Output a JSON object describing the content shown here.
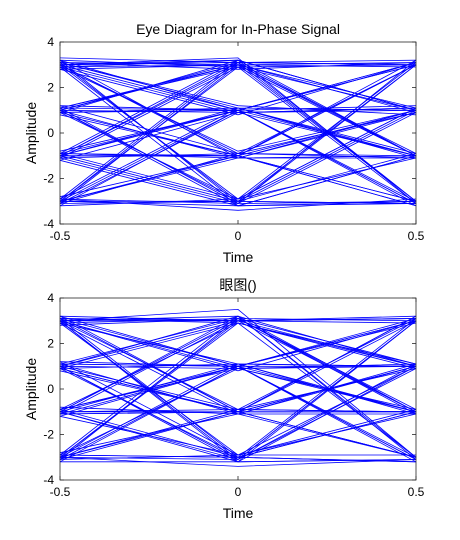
{
  "chart_data": [
    {
      "type": "line",
      "title": "Eye Diagram for In-Phase Signal",
      "xlabel": "Time",
      "ylabel": "Amplitude",
      "xlim": [
        -0.5,
        0.5
      ],
      "ylim": [
        -4,
        4
      ],
      "xticks": [
        "-0.5",
        "0",
        "0.5"
      ],
      "yticks": [
        "4",
        "2",
        "0",
        "-2",
        "-4"
      ],
      "color": "#0000ff",
      "trace_x": [
        -0.5,
        0,
        0.5
      ],
      "traces": [
        [
          3.0,
          3.1,
          3.2
        ],
        [
          3.1,
          3.0,
          -0.9
        ],
        [
          2.9,
          3.2,
          1.0
        ],
        [
          3.2,
          2.9,
          3.0
        ],
        [
          3.0,
          3.3,
          -3.1
        ],
        [
          2.8,
          3.0,
          1.1
        ],
        [
          3.3,
          3.1,
          -1.0
        ],
        [
          3.1,
          2.8,
          3.1
        ],
        [
          2.9,
          3.0,
          0.9
        ],
        [
          3.0,
          3.2,
          -3.0
        ],
        [
          3.2,
          1.0,
          3.0
        ],
        [
          2.9,
          0.9,
          -1.0
        ],
        [
          3.1,
          1.1,
          1.0
        ],
        [
          3.0,
          1.0,
          -3.2
        ],
        [
          2.8,
          0.8,
          3.1
        ],
        [
          3.1,
          1.2,
          0.8
        ],
        [
          3.0,
          -1.0,
          -3.0
        ],
        [
          2.9,
          -0.8,
          1.0
        ],
        [
          3.2,
          -1.1,
          -1.1
        ],
        [
          3.0,
          -0.9,
          3.0
        ],
        [
          3.1,
          -3.0,
          -3.1
        ],
        [
          2.9,
          -3.2,
          -1.0
        ],
        [
          3.0,
          -2.9,
          1.1
        ],
        [
          3.2,
          -3.1,
          3.2
        ],
        [
          1.0,
          3.1,
          3.0
        ],
        [
          1.1,
          2.9,
          -1.0
        ],
        [
          0.9,
          3.2,
          1.0
        ],
        [
          1.0,
          3.0,
          -3.0
        ],
        [
          1.2,
          1.0,
          3.1
        ],
        [
          0.9,
          1.1,
          -0.9
        ],
        [
          1.0,
          0.9,
          1.1
        ],
        [
          1.1,
          1.0,
          -3.1
        ],
        [
          0.8,
          -1.0,
          3.0
        ],
        [
          1.0,
          -1.1,
          1.0
        ],
        [
          1.2,
          -0.9,
          -1.0
        ],
        [
          0.9,
          -1.0,
          -3.2
        ],
        [
          1.0,
          -3.0,
          3.0
        ],
        [
          1.1,
          -3.1,
          0.9
        ],
        [
          0.9,
          -2.9,
          -1.1
        ],
        [
          1.0,
          -3.2,
          -3.0
        ],
        [
          1.1,
          3.0,
          2.9
        ],
        [
          0.9,
          1.0,
          1.2
        ],
        [
          -1.0,
          3.0,
          3.1
        ],
        [
          -0.9,
          3.2,
          -1.0
        ],
        [
          -1.1,
          2.9,
          1.0
        ],
        [
          -1.0,
          3.1,
          -3.0
        ],
        [
          -0.8,
          1.0,
          3.0
        ],
        [
          -1.0,
          1.1,
          -1.1
        ],
        [
          -1.2,
          0.9,
          1.0
        ],
        [
          -0.9,
          1.0,
          -3.1
        ],
        [
          -1.0,
          -1.0,
          3.2
        ],
        [
          -1.1,
          -0.9,
          0.9
        ],
        [
          -0.9,
          -1.1,
          -1.0
        ],
        [
          -1.0,
          -1.0,
          -3.0
        ],
        [
          -1.1,
          -3.1,
          3.0
        ],
        [
          -0.9,
          -2.9,
          1.1
        ],
        [
          -1.0,
          -3.0,
          -0.9
        ],
        [
          -1.2,
          -3.2,
          -3.1
        ],
        [
          -1.0,
          1.0,
          -1.0
        ],
        [
          -0.9,
          -1.0,
          1.0
        ],
        [
          -3.0,
          3.1,
          3.0
        ],
        [
          -3.1,
          3.0,
          -1.0
        ],
        [
          -2.9,
          3.2,
          1.0
        ],
        [
          -3.0,
          2.9,
          -3.1
        ],
        [
          -3.2,
          1.0,
          3.1
        ],
        [
          -2.9,
          1.1,
          -1.0
        ],
        [
          -3.1,
          0.9,
          1.1
        ],
        [
          -3.0,
          1.0,
          -3.0
        ],
        [
          -2.8,
          -1.0,
          3.0
        ],
        [
          -3.0,
          -1.1,
          0.9
        ],
        [
          -3.1,
          -0.9,
          -1.1
        ],
        [
          -3.0,
          -1.0,
          -3.2
        ],
        [
          -2.9,
          -3.1,
          -3.0
        ],
        [
          -3.2,
          -2.9,
          3.1
        ],
        [
          -3.0,
          -3.2,
          -1.0
        ],
        [
          -3.1,
          -3.0,
          1.0
        ],
        [
          -2.9,
          -3.4,
          -2.9
        ],
        [
          -3.0,
          -3.0,
          -3.1
        ]
      ]
    },
    {
      "type": "line",
      "title": "眼图()",
      "xlabel": "Time",
      "ylabel": "Amplitude",
      "xlim": [
        -0.5,
        0.5
      ],
      "ylim": [
        -4,
        4
      ],
      "xticks": [
        "-0.5",
        "0",
        "0.5"
      ],
      "yticks": [
        "4",
        "2",
        "0",
        "-2",
        "-4"
      ],
      "color": "#0000ff",
      "trace_x": [
        -0.5,
        0,
        0.5
      ],
      "traces": [
        [
          3.1,
          3.0,
          3.1
        ],
        [
          3.0,
          3.2,
          -1.0
        ],
        [
          2.9,
          3.1,
          1.1
        ],
        [
          3.2,
          3.0,
          2.9
        ],
        [
          3.0,
          3.5,
          -3.0
        ],
        [
          3.1,
          2.9,
          0.9
        ],
        [
          2.8,
          3.1,
          -1.1
        ],
        [
          3.0,
          3.0,
          3.2
        ],
        [
          3.1,
          1.0,
          2.9
        ],
        [
          3.0,
          0.9,
          -1.0
        ],
        [
          2.9,
          1.1,
          1.0
        ],
        [
          3.2,
          1.0,
          -3.1
        ],
        [
          3.0,
          0.8,
          3.0
        ],
        [
          3.1,
          -1.0,
          1.0
        ],
        [
          2.9,
          -1.1,
          -3.0
        ],
        [
          3.0,
          -0.9,
          3.1
        ],
        [
          3.2,
          -1.0,
          -1.0
        ],
        [
          3.1,
          -3.0,
          -3.2
        ],
        [
          3.0,
          -3.1,
          1.1
        ],
        [
          2.9,
          -2.9,
          -0.9
        ],
        [
          3.0,
          -3.2,
          3.0
        ],
        [
          3.1,
          3.0,
          1.0
        ],
        [
          1.0,
          3.0,
          3.1
        ],
        [
          1.1,
          3.1,
          -0.9
        ],
        [
          0.9,
          2.9,
          1.0
        ],
        [
          1.0,
          3.2,
          -3.1
        ],
        [
          1.2,
          1.0,
          3.0
        ],
        [
          0.9,
          1.1,
          -1.0
        ],
        [
          1.0,
          0.9,
          1.1
        ],
        [
          1.1,
          1.0,
          -3.0
        ],
        [
          0.8,
          -1.0,
          3.2
        ],
        [
          1.0,
          -0.9,
          0.9
        ],
        [
          1.1,
          -1.1,
          -1.1
        ],
        [
          0.9,
          -1.0,
          -3.0
        ],
        [
          1.0,
          -3.1,
          3.0
        ],
        [
          1.2,
          -2.9,
          1.0
        ],
        [
          0.9,
          -3.0,
          -1.0
        ],
        [
          1.0,
          -3.2,
          -3.1
        ],
        [
          1.1,
          1.0,
          1.0
        ],
        [
          0.9,
          -1.0,
          -1.0
        ],
        [
          -1.0,
          3.1,
          3.0
        ],
        [
          -1.1,
          3.0,
          -1.0
        ],
        [
          -0.9,
          2.9,
          1.1
        ],
        [
          -1.0,
          3.2,
          -3.0
        ],
        [
          -1.2,
          1.0,
          3.1
        ],
        [
          -0.9,
          0.9,
          -0.9
        ],
        [
          -1.0,
          1.1,
          1.0
        ],
        [
          -1.1,
          1.0,
          -3.2
        ],
        [
          -1.0,
          -1.0,
          3.0
        ],
        [
          -0.8,
          -1.1,
          1.0
        ],
        [
          -1.0,
          -0.9,
          -1.0
        ],
        [
          -1.1,
          -1.0,
          -3.0
        ],
        [
          -0.9,
          -3.0,
          3.1
        ],
        [
          -1.0,
          -3.1,
          0.9
        ],
        [
          -1.2,
          -2.9,
          -1.1
        ],
        [
          -1.0,
          -3.2,
          -3.1
        ],
        [
          -0.9,
          1.0,
          -1.0
        ],
        [
          -1.1,
          -1.0,
          1.0
        ],
        [
          -3.0,
          3.0,
          3.1
        ],
        [
          -3.1,
          3.1,
          -1.0
        ],
        [
          -2.9,
          3.2,
          1.0
        ],
        [
          -3.0,
          2.9,
          -3.0
        ],
        [
          -3.2,
          1.0,
          3.0
        ],
        [
          -3.0,
          1.1,
          -1.1
        ],
        [
          -2.9,
          0.9,
          1.0
        ],
        [
          -3.1,
          1.0,
          -3.1
        ],
        [
          -3.0,
          -1.0,
          3.2
        ],
        [
          -2.8,
          -1.1,
          1.1
        ],
        [
          -3.0,
          -0.9,
          -1.0
        ],
        [
          -3.1,
          -1.0,
          -3.0
        ],
        [
          -3.0,
          -3.1,
          3.0
        ],
        [
          -2.9,
          -3.0,
          -1.0
        ],
        [
          -3.2,
          -3.2,
          1.0
        ],
        [
          -3.0,
          -3.4,
          -3.1
        ],
        [
          -3.1,
          -2.9,
          -2.9
        ],
        [
          -2.9,
          -3.0,
          -3.2
        ]
      ]
    }
  ]
}
